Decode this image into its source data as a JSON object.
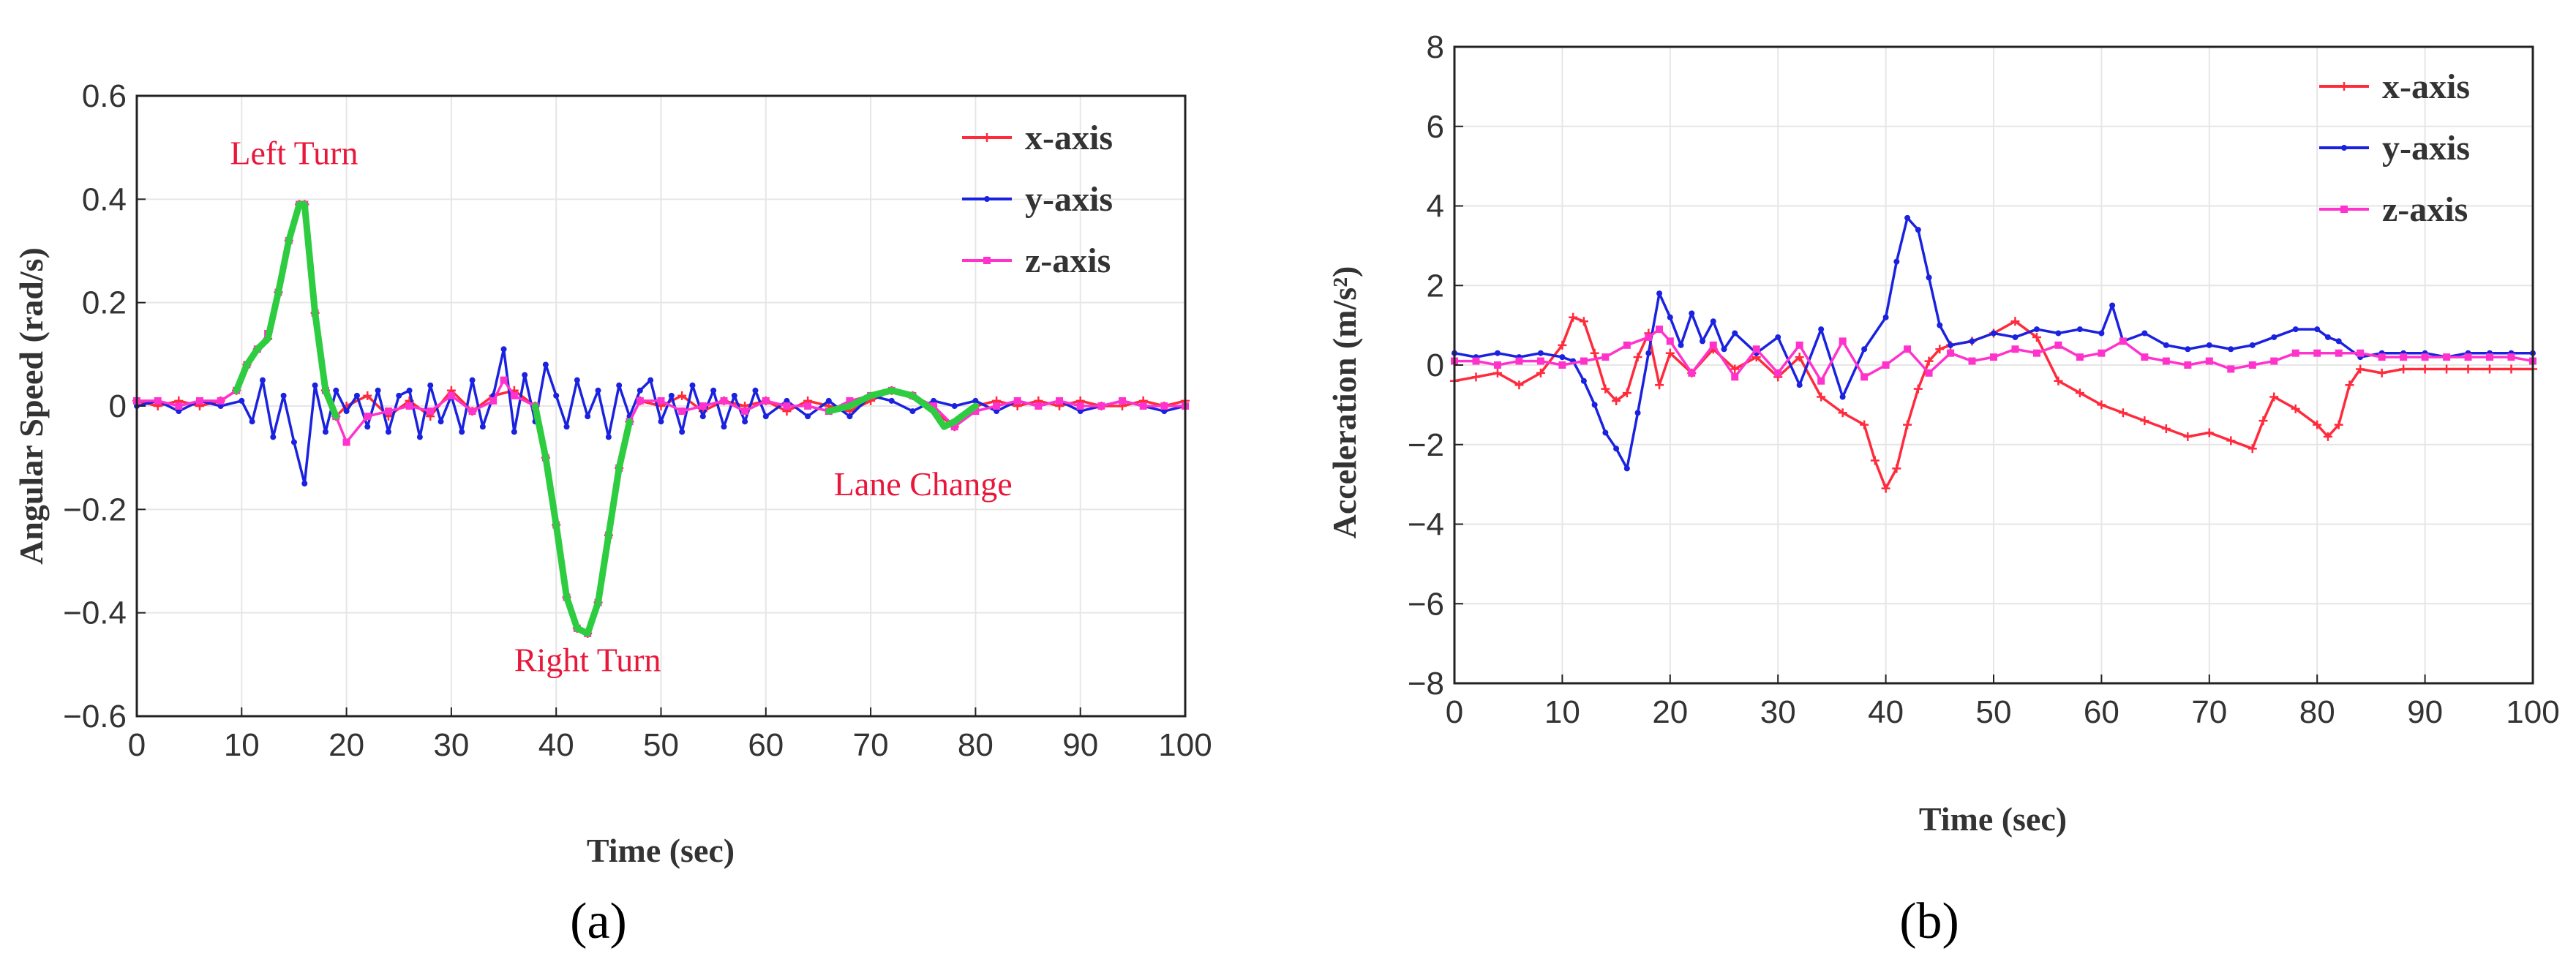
{
  "chart_data": [
    {
      "type": "line",
      "panel_label": "(a)",
      "title": "",
      "xlabel": "Time (sec)",
      "ylabel": "Angular Speed (rad/s)",
      "xlim": [
        0,
        100
      ],
      "ylim": [
        -0.6,
        0.6
      ],
      "xticks": [
        0,
        10,
        20,
        30,
        40,
        50,
        60,
        70,
        80,
        90,
        100
      ],
      "yticks": [
        -0.6,
        -0.4,
        -0.2,
        0,
        0.2,
        0.4,
        0.6
      ],
      "ytick_labels": [
        "−0.6",
        "−0.4",
        "−0.2",
        "0",
        "0.2",
        "0.4",
        "0.6"
      ],
      "grid": true,
      "legend_position": "top-right",
      "series": [
        {
          "name": "x-axis",
          "color": "#ff2a3c",
          "marker": "plus",
          "x": [
            0,
            2,
            4,
            6,
            8,
            9.5,
            10.5,
            11.5,
            12.5,
            13.5,
            14.5,
            15.5,
            16,
            17,
            18,
            19,
            20,
            22,
            24,
            26,
            28,
            30,
            32,
            34,
            36,
            38,
            39,
            40,
            41,
            42,
            43,
            44,
            45,
            46,
            47,
            48,
            50,
            52,
            54,
            56,
            58,
            60,
            62,
            64,
            66,
            68,
            70,
            72,
            74,
            76,
            78,
            80,
            82,
            84,
            86,
            88,
            90,
            92,
            94,
            96,
            98,
            100
          ],
          "y": [
            0.01,
            0,
            0.01,
            0,
            0.01,
            0.03,
            0.08,
            0.11,
            0.13,
            0.22,
            0.32,
            0.39,
            0.39,
            0.18,
            0.03,
            -0.02,
            0,
            0.02,
            -0.02,
            0.01,
            -0.02,
            0.03,
            -0.01,
            0.02,
            0.03,
            0,
            -0.1,
            -0.23,
            -0.37,
            -0.43,
            -0.44,
            -0.38,
            -0.25,
            -0.12,
            -0.03,
            0.01,
            0,
            0.02,
            -0.01,
            0.01,
            0,
            0.01,
            -0.01,
            0.01,
            0,
            -0.01,
            0.01,
            0.03,
            0.02,
            -0.01,
            -0.04,
            0,
            0.01,
            0,
            0.01,
            0,
            0.01,
            0,
            0,
            0.01,
            0,
            0.01
          ]
        },
        {
          "name": "y-axis",
          "color": "#1a22e0",
          "marker": "dot",
          "x": [
            0,
            2,
            4,
            6,
            8,
            10,
            11,
            12,
            13,
            14,
            15,
            16,
            17,
            18,
            19,
            20,
            21,
            22,
            23,
            24,
            25,
            26,
            27,
            28,
            29,
            30,
            31,
            32,
            33,
            34,
            35,
            36,
            37,
            38,
            39,
            40,
            41,
            42,
            43,
            44,
            45,
            46,
            47,
            48,
            49,
            50,
            51,
            52,
            53,
            54,
            55,
            56,
            57,
            58,
            59,
            60,
            62,
            64,
            66,
            68,
            70,
            72,
            74,
            76,
            78,
            80,
            82,
            84,
            86,
            88,
            90,
            92,
            94,
            96,
            98,
            100
          ],
          "y": [
            0,
            0.01,
            -0.01,
            0.01,
            0,
            0.01,
            -0.03,
            0.05,
            -0.06,
            0.02,
            -0.07,
            -0.15,
            0.04,
            -0.05,
            0.03,
            -0.01,
            0.02,
            -0.04,
            0.03,
            -0.05,
            0.02,
            0.03,
            -0.06,
            0.04,
            -0.03,
            0.02,
            -0.05,
            0.05,
            -0.04,
            0.02,
            0.11,
            -0.05,
            0.06,
            -0.03,
            0.08,
            0.02,
            -0.04,
            0.05,
            -0.02,
            0.03,
            -0.06,
            0.04,
            -0.02,
            0.03,
            0.05,
            -0.03,
            0.02,
            -0.05,
            0.04,
            -0.02,
            0.03,
            -0.04,
            0.02,
            -0.03,
            0.03,
            -0.02,
            0.01,
            -0.02,
            0.01,
            -0.02,
            0.02,
            0.01,
            -0.01,
            0.01,
            0,
            0.01,
            -0.01,
            0.01,
            0,
            0.01,
            -0.01,
            0,
            0.01,
            0,
            -0.01,
            0
          ]
        },
        {
          "name": "z-axis",
          "color": "#ff33cc",
          "marker": "square",
          "x": [
            0,
            2,
            4,
            6,
            8,
            9.5,
            10.5,
            11.5,
            12.5,
            13.5,
            14.5,
            15.5,
            16,
            17,
            18,
            19,
            20,
            22,
            24,
            26,
            28,
            30,
            32,
            34,
            35,
            36,
            38,
            39,
            40,
            41,
            42,
            43,
            44,
            45,
            46,
            47,
            48,
            50,
            52,
            54,
            56,
            58,
            60,
            62,
            64,
            66,
            68,
            70,
            72,
            74,
            76,
            78,
            80,
            82,
            84,
            86,
            88,
            90,
            92,
            94,
            96,
            98,
            100
          ],
          "y": [
            0.01,
            0.01,
            0,
            0.01,
            0.01,
            0.03,
            0.08,
            0.11,
            0.14,
            0.22,
            0.32,
            0.39,
            0.39,
            0.18,
            0.03,
            -0.02,
            -0.07,
            -0.02,
            -0.01,
            0,
            -0.01,
            0.02,
            -0.01,
            0.01,
            0.05,
            0.02,
            0,
            -0.1,
            -0.23,
            -0.37,
            -0.43,
            -0.44,
            -0.38,
            -0.25,
            -0.12,
            -0.03,
            0.01,
            0.01,
            -0.01,
            0,
            0.01,
            -0.01,
            0.01,
            0,
            0,
            -0.01,
            0.01,
            0.02,
            0.03,
            0.02,
            0,
            -0.04,
            -0.01,
            0,
            0.01,
            0,
            0.01,
            0,
            0,
            0.01,
            0,
            0,
            0
          ]
        },
        {
          "name": "highlight",
          "color": "#2ecc40",
          "marker": "none",
          "in_legend": false,
          "segments": [
            {
              "x": [
                9.5,
                10.5,
                11.5,
                12.5,
                13.5,
                14.5,
                15.5,
                16,
                17,
                18,
                19
              ],
              "y": [
                0.03,
                0.08,
                0.11,
                0.13,
                0.22,
                0.32,
                0.39,
                0.39,
                0.18,
                0.03,
                -0.02
              ]
            },
            {
              "x": [
                38,
                39,
                40,
                41,
                42,
                43,
                44,
                45,
                46,
                47
              ],
              "y": [
                0,
                -0.1,
                -0.23,
                -0.37,
                -0.43,
                -0.44,
                -0.38,
                -0.25,
                -0.12,
                -0.03
              ]
            },
            {
              "x": [
                66,
                68,
                70,
                72,
                74,
                76,
                77,
                78,
                80
              ],
              "y": [
                -0.01,
                0,
                0.02,
                0.03,
                0.02,
                -0.01,
                -0.04,
                -0.03,
                0
              ]
            }
          ]
        }
      ],
      "annotations": [
        {
          "text": "Left Turn",
          "x": 15,
          "y": 0.49
        },
        {
          "text": "Right Turn",
          "x": 43,
          "y": -0.49
        },
        {
          "text": "Lane Change",
          "x": 75,
          "y": -0.15
        }
      ]
    },
    {
      "type": "line",
      "panel_label": "(b)",
      "title": "",
      "xlabel": "Time (sec)",
      "ylabel": "Acceleration (m/s²)",
      "xlim": [
        0,
        100
      ],
      "ylim": [
        -8,
        8
      ],
      "xticks": [
        0,
        10,
        20,
        30,
        40,
        50,
        60,
        70,
        80,
        90,
        100
      ],
      "yticks": [
        -8,
        -6,
        -4,
        -2,
        0,
        2,
        4,
        6,
        8
      ],
      "ytick_labels": [
        "−8",
        "−6",
        "−4",
        "−2",
        "0",
        "2",
        "4",
        "6",
        "8"
      ],
      "grid": true,
      "legend_position": "top-right",
      "series": [
        {
          "name": "x-axis",
          "color": "#ff2a3c",
          "marker": "plus",
          "x": [
            0,
            2,
            4,
            6,
            8,
            10,
            11,
            12,
            13,
            14,
            15,
            16,
            17,
            18,
            19,
            20,
            22,
            24,
            26,
            28,
            30,
            32,
            34,
            36,
            38,
            39,
            40,
            41,
            42,
            43,
            44,
            45,
            46,
            48,
            50,
            52,
            54,
            56,
            58,
            60,
            62,
            64,
            66,
            68,
            70,
            72,
            74,
            75,
            76,
            78,
            80,
            81,
            82,
            83,
            84,
            86,
            88,
            90,
            92,
            94,
            96,
            98,
            100
          ],
          "y": [
            -0.4,
            -0.3,
            -0.2,
            -0.5,
            -0.2,
            0.5,
            1.2,
            1.1,
            0.3,
            -0.6,
            -0.9,
            -0.7,
            0.2,
            0.8,
            -0.5,
            0.3,
            -0.2,
            0.4,
            -0.1,
            0.2,
            -0.3,
            0.2,
            -0.8,
            -1.2,
            -1.5,
            -2.4,
            -3.1,
            -2.6,
            -1.5,
            -0.6,
            0.1,
            0.4,
            0.5,
            0.6,
            0.8,
            1.1,
            0.7,
            -0.4,
            -0.7,
            -1,
            -1.2,
            -1.4,
            -1.6,
            -1.8,
            -1.7,
            -1.9,
            -2.1,
            -1.4,
            -0.8,
            -1.1,
            -1.5,
            -1.8,
            -1.5,
            -0.5,
            -0.1,
            -0.2,
            -0.1,
            -0.1,
            -0.1,
            -0.1,
            -0.1,
            -0.1,
            -0.1
          ]
        },
        {
          "name": "y-axis",
          "color": "#1a22e0",
          "marker": "dot",
          "x": [
            0,
            2,
            4,
            6,
            8,
            10,
            11,
            12,
            13,
            14,
            15,
            16,
            17,
            18,
            19,
            20,
            21,
            22,
            23,
            24,
            25,
            26,
            28,
            30,
            32,
            34,
            36,
            38,
            40,
            41,
            42,
            43,
            44,
            45,
            46,
            48,
            50,
            52,
            54,
            56,
            58,
            60,
            61,
            62,
            64,
            66,
            68,
            70,
            72,
            74,
            76,
            78,
            80,
            81,
            82,
            84,
            86,
            88,
            90,
            92,
            94,
            96,
            98,
            100
          ],
          "y": [
            0.3,
            0.2,
            0.3,
            0.2,
            0.3,
            0.2,
            0.1,
            -0.4,
            -1,
            -1.7,
            -2.1,
            -2.6,
            -1.2,
            0.3,
            1.8,
            1.2,
            0.5,
            1.3,
            0.6,
            1.1,
            0.4,
            0.8,
            0.3,
            0.7,
            -0.5,
            0.9,
            -0.8,
            0.4,
            1.2,
            2.6,
            3.7,
            3.4,
            2.2,
            1,
            0.5,
            0.6,
            0.8,
            0.7,
            0.9,
            0.8,
            0.9,
            0.8,
            1.5,
            0.6,
            0.8,
            0.5,
            0.4,
            0.5,
            0.4,
            0.5,
            0.7,
            0.9,
            0.9,
            0.7,
            0.6,
            0.2,
            0.3,
            0.3,
            0.3,
            0.2,
            0.3,
            0.3,
            0.3,
            0.3
          ]
        },
        {
          "name": "z-axis",
          "color": "#ff33cc",
          "marker": "square",
          "x": [
            0,
            2,
            4,
            6,
            8,
            10,
            12,
            14,
            16,
            18,
            19,
            20,
            22,
            24,
            26,
            28,
            30,
            32,
            34,
            36,
            38,
            40,
            42,
            44,
            46,
            48,
            50,
            52,
            54,
            56,
            58,
            60,
            62,
            64,
            66,
            68,
            70,
            72,
            74,
            76,
            78,
            80,
            82,
            84,
            86,
            88,
            90,
            92,
            94,
            96,
            98,
            100
          ],
          "y": [
            0.1,
            0.1,
            0,
            0.1,
            0.1,
            0,
            0.1,
            0.2,
            0.5,
            0.7,
            0.9,
            0.6,
            -0.2,
            0.5,
            -0.3,
            0.4,
            -0.2,
            0.5,
            -0.4,
            0.6,
            -0.3,
            0,
            0.4,
            -0.2,
            0.3,
            0.1,
            0.2,
            0.4,
            0.3,
            0.5,
            0.2,
            0.3,
            0.6,
            0.2,
            0.1,
            0,
            0.1,
            -0.1,
            0,
            0.1,
            0.3,
            0.3,
            0.3,
            0.3,
            0.2,
            0.2,
            0.2,
            0.2,
            0.2,
            0.2,
            0.2,
            0.1
          ]
        }
      ],
      "annotations": []
    }
  ]
}
